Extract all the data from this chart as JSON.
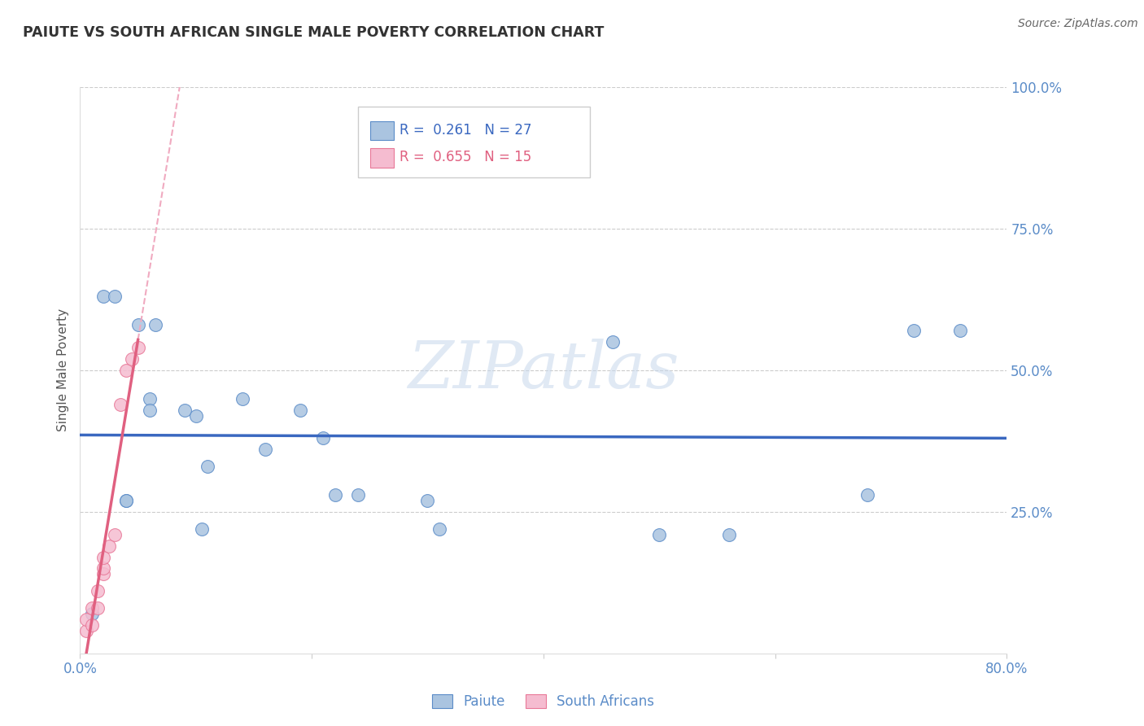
{
  "title": "PAIUTE VS SOUTH AFRICAN SINGLE MALE POVERTY CORRELATION CHART",
  "source": "Source: ZipAtlas.com",
  "ylabel": "Single Male Poverty",
  "xlim": [
    0.0,
    0.8
  ],
  "ylim": [
    0.0,
    1.0
  ],
  "xtick_vals": [
    0.0,
    0.2,
    0.4,
    0.6,
    0.8
  ],
  "xtick_labels": [
    "0.0%",
    "",
    "",
    "",
    "80.0%"
  ],
  "ytick_vals": [
    0.0,
    0.25,
    0.5,
    0.75,
    1.0
  ],
  "ytick_labels": [
    "",
    "25.0%",
    "50.0%",
    "75.0%",
    "100.0%"
  ],
  "paiute_x": [
    0.01,
    0.02,
    0.03,
    0.04,
    0.04,
    0.05,
    0.06,
    0.06,
    0.065,
    0.09,
    0.1,
    0.105,
    0.11,
    0.14,
    0.16,
    0.19,
    0.21,
    0.22,
    0.24,
    0.3,
    0.31,
    0.46,
    0.5,
    0.56,
    0.68,
    0.72,
    0.76
  ],
  "paiute_y": [
    0.07,
    0.63,
    0.63,
    0.27,
    0.27,
    0.58,
    0.45,
    0.43,
    0.58,
    0.43,
    0.42,
    0.22,
    0.33,
    0.45,
    0.36,
    0.43,
    0.38,
    0.28,
    0.28,
    0.27,
    0.22,
    0.55,
    0.21,
    0.21,
    0.28,
    0.57,
    0.57
  ],
  "sa_x": [
    0.005,
    0.005,
    0.01,
    0.01,
    0.015,
    0.015,
    0.02,
    0.02,
    0.02,
    0.025,
    0.03,
    0.035,
    0.04,
    0.045,
    0.05
  ],
  "sa_y": [
    0.04,
    0.06,
    0.05,
    0.08,
    0.08,
    0.11,
    0.14,
    0.15,
    0.17,
    0.19,
    0.21,
    0.44,
    0.5,
    0.52,
    0.54
  ],
  "paiute_color": "#aac4e0",
  "sa_color": "#f5bcd0",
  "paiute_edge_color": "#5b8cc8",
  "sa_edge_color": "#e87898",
  "paiute_line_color": "#3a68c0",
  "sa_solid_color": "#e06080",
  "sa_dash_color": "#f0aac0",
  "R_paiute": "0.261",
  "N_paiute": "27",
  "R_sa": "0.655",
  "N_sa": "15",
  "legend_label_paiute": "Paiute",
  "legend_label_sa": "South Africans",
  "watermark": "ZIPatlas",
  "bg_color": "#ffffff",
  "grid_color": "#cccccc",
  "tick_color": "#5b8cc8",
  "title_color": "#333333",
  "source_color": "#666666"
}
